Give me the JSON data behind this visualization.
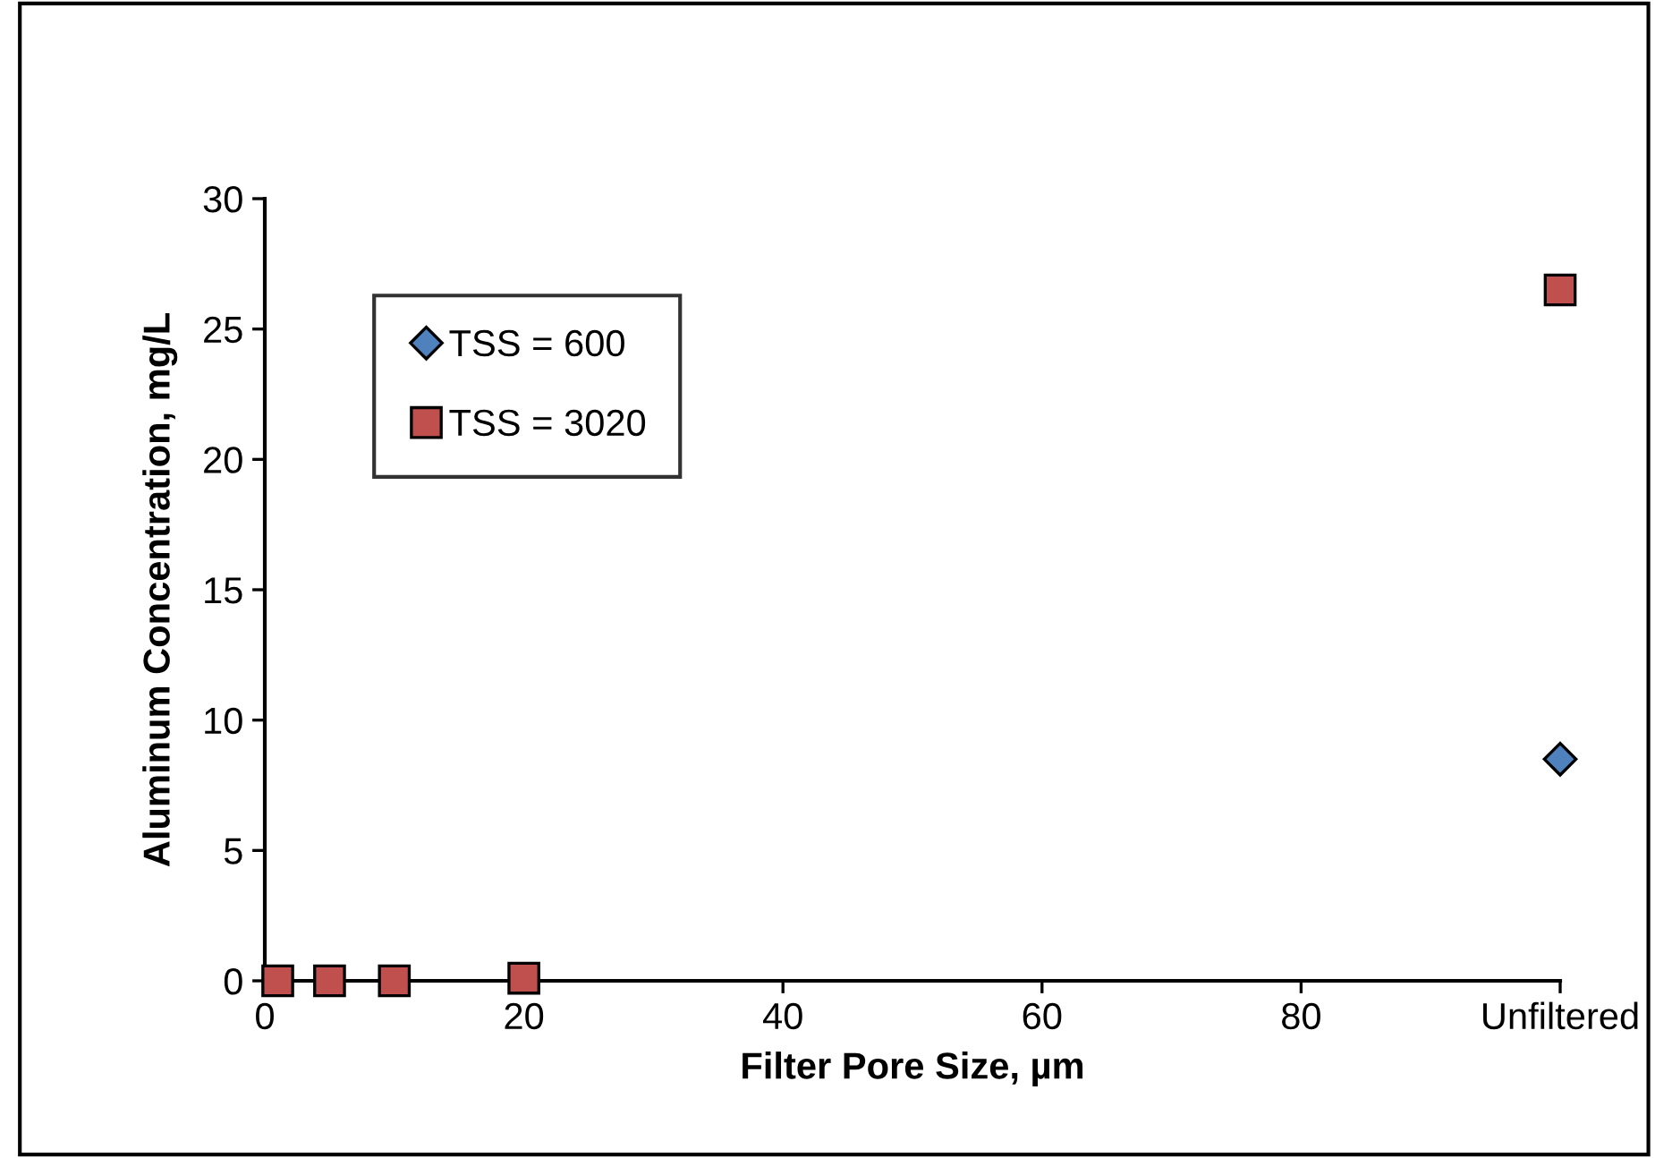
{
  "chart_data": {
    "type": "scatter",
    "xlabel": "Filter Pore Size, µm",
    "ylabel": "Aluminum Concentration, mg/L",
    "series": [
      {
        "name": "TSS = 600",
        "color": "#4f81bd",
        "marker": "diamond",
        "x": [
          100
        ],
        "values": [
          8.5
        ]
      },
      {
        "name": "TSS = 3020",
        "color": "#c0504d",
        "marker": "square",
        "x": [
          1,
          5,
          10,
          20,
          100
        ],
        "values": [
          0.0,
          0.0,
          0.0,
          0.1,
          26.5
        ]
      }
    ],
    "xlim": [
      0,
      100
    ],
    "xticks": [
      0,
      20,
      40,
      60,
      80,
      {
        "value": 100,
        "label": "Unfiltered"
      }
    ],
    "ylim": [
      0,
      30
    ],
    "yticks": [
      0,
      5,
      10,
      15,
      20,
      25,
      30
    ],
    "grid": false,
    "legend": "top left"
  }
}
